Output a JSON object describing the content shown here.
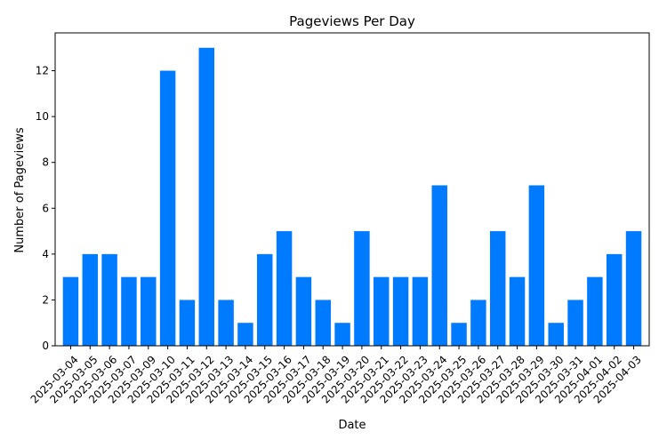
{
  "chart_data": {
    "type": "bar",
    "title": "Pageviews Per Day",
    "xlabel": "Date",
    "ylabel": "Number of Pageviews",
    "categories": [
      "2025-03-04",
      "2025-03-05",
      "2025-03-06",
      "2025-03-07",
      "2025-03-09",
      "2025-03-10",
      "2025-03-11",
      "2025-03-12",
      "2025-03-13",
      "2025-03-14",
      "2025-03-15",
      "2025-03-16",
      "2025-03-17",
      "2025-03-18",
      "2025-03-19",
      "2025-03-20",
      "2025-03-21",
      "2025-03-22",
      "2025-03-23",
      "2025-03-24",
      "2025-03-25",
      "2025-03-26",
      "2025-03-27",
      "2025-03-28",
      "2025-03-29",
      "2025-03-30",
      "2025-03-31",
      "2025-04-01",
      "2025-04-02",
      "2025-04-03"
    ],
    "values": [
      3,
      4,
      4,
      3,
      3,
      12,
      2,
      13,
      2,
      1,
      4,
      5,
      3,
      2,
      1,
      5,
      3,
      3,
      3,
      7,
      1,
      2,
      5,
      3,
      7,
      1,
      2,
      3,
      4,
      5
    ],
    "ylim": [
      0,
      13.65
    ],
    "yticks": [
      0,
      2,
      4,
      6,
      8,
      10,
      12
    ],
    "grid": false,
    "legend": "none",
    "bar_color": "#007bff"
  }
}
